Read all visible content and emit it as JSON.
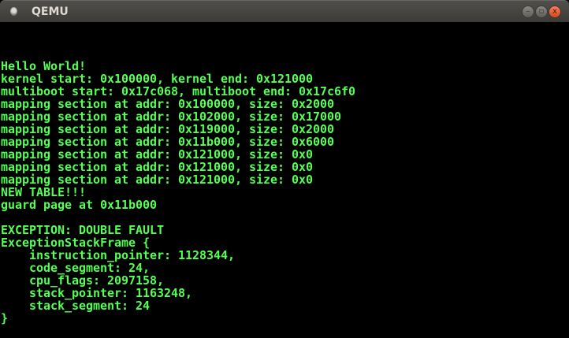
{
  "window": {
    "title": "QEMU",
    "icons": {
      "app": "qemu-icon",
      "minimize": "minimize-icon",
      "maximize": "maximize-icon",
      "close": "close-icon"
    }
  },
  "terminal": {
    "color": "#55ff55",
    "lines": [
      "Hello World!",
      "kernel start: 0x100000, kernel end: 0x121000",
      "multiboot start: 0x17c068, multiboot end: 0x17c6f0",
      "mapping section at addr: 0x100000, size: 0x2000",
      "mapping section at addr: 0x102000, size: 0x17000",
      "mapping section at addr: 0x119000, size: 0x2000",
      "mapping section at addr: 0x11b000, size: 0x6000",
      "mapping section at addr: 0x121000, size: 0x0",
      "mapping section at addr: 0x121000, size: 0x0",
      "mapping section at addr: 0x121000, size: 0x0",
      "NEW TABLE!!!",
      "guard page at 0x11b000",
      "",
      "EXCEPTION: DOUBLE FAULT",
      "ExceptionStackFrame {",
      "    instruction_pointer: 1128344,",
      "    code_segment: 24,",
      "    cpu_flags: 2097158,",
      "    stack_pointer: 1163248,",
      "    stack_segment: 24",
      "}"
    ]
  }
}
